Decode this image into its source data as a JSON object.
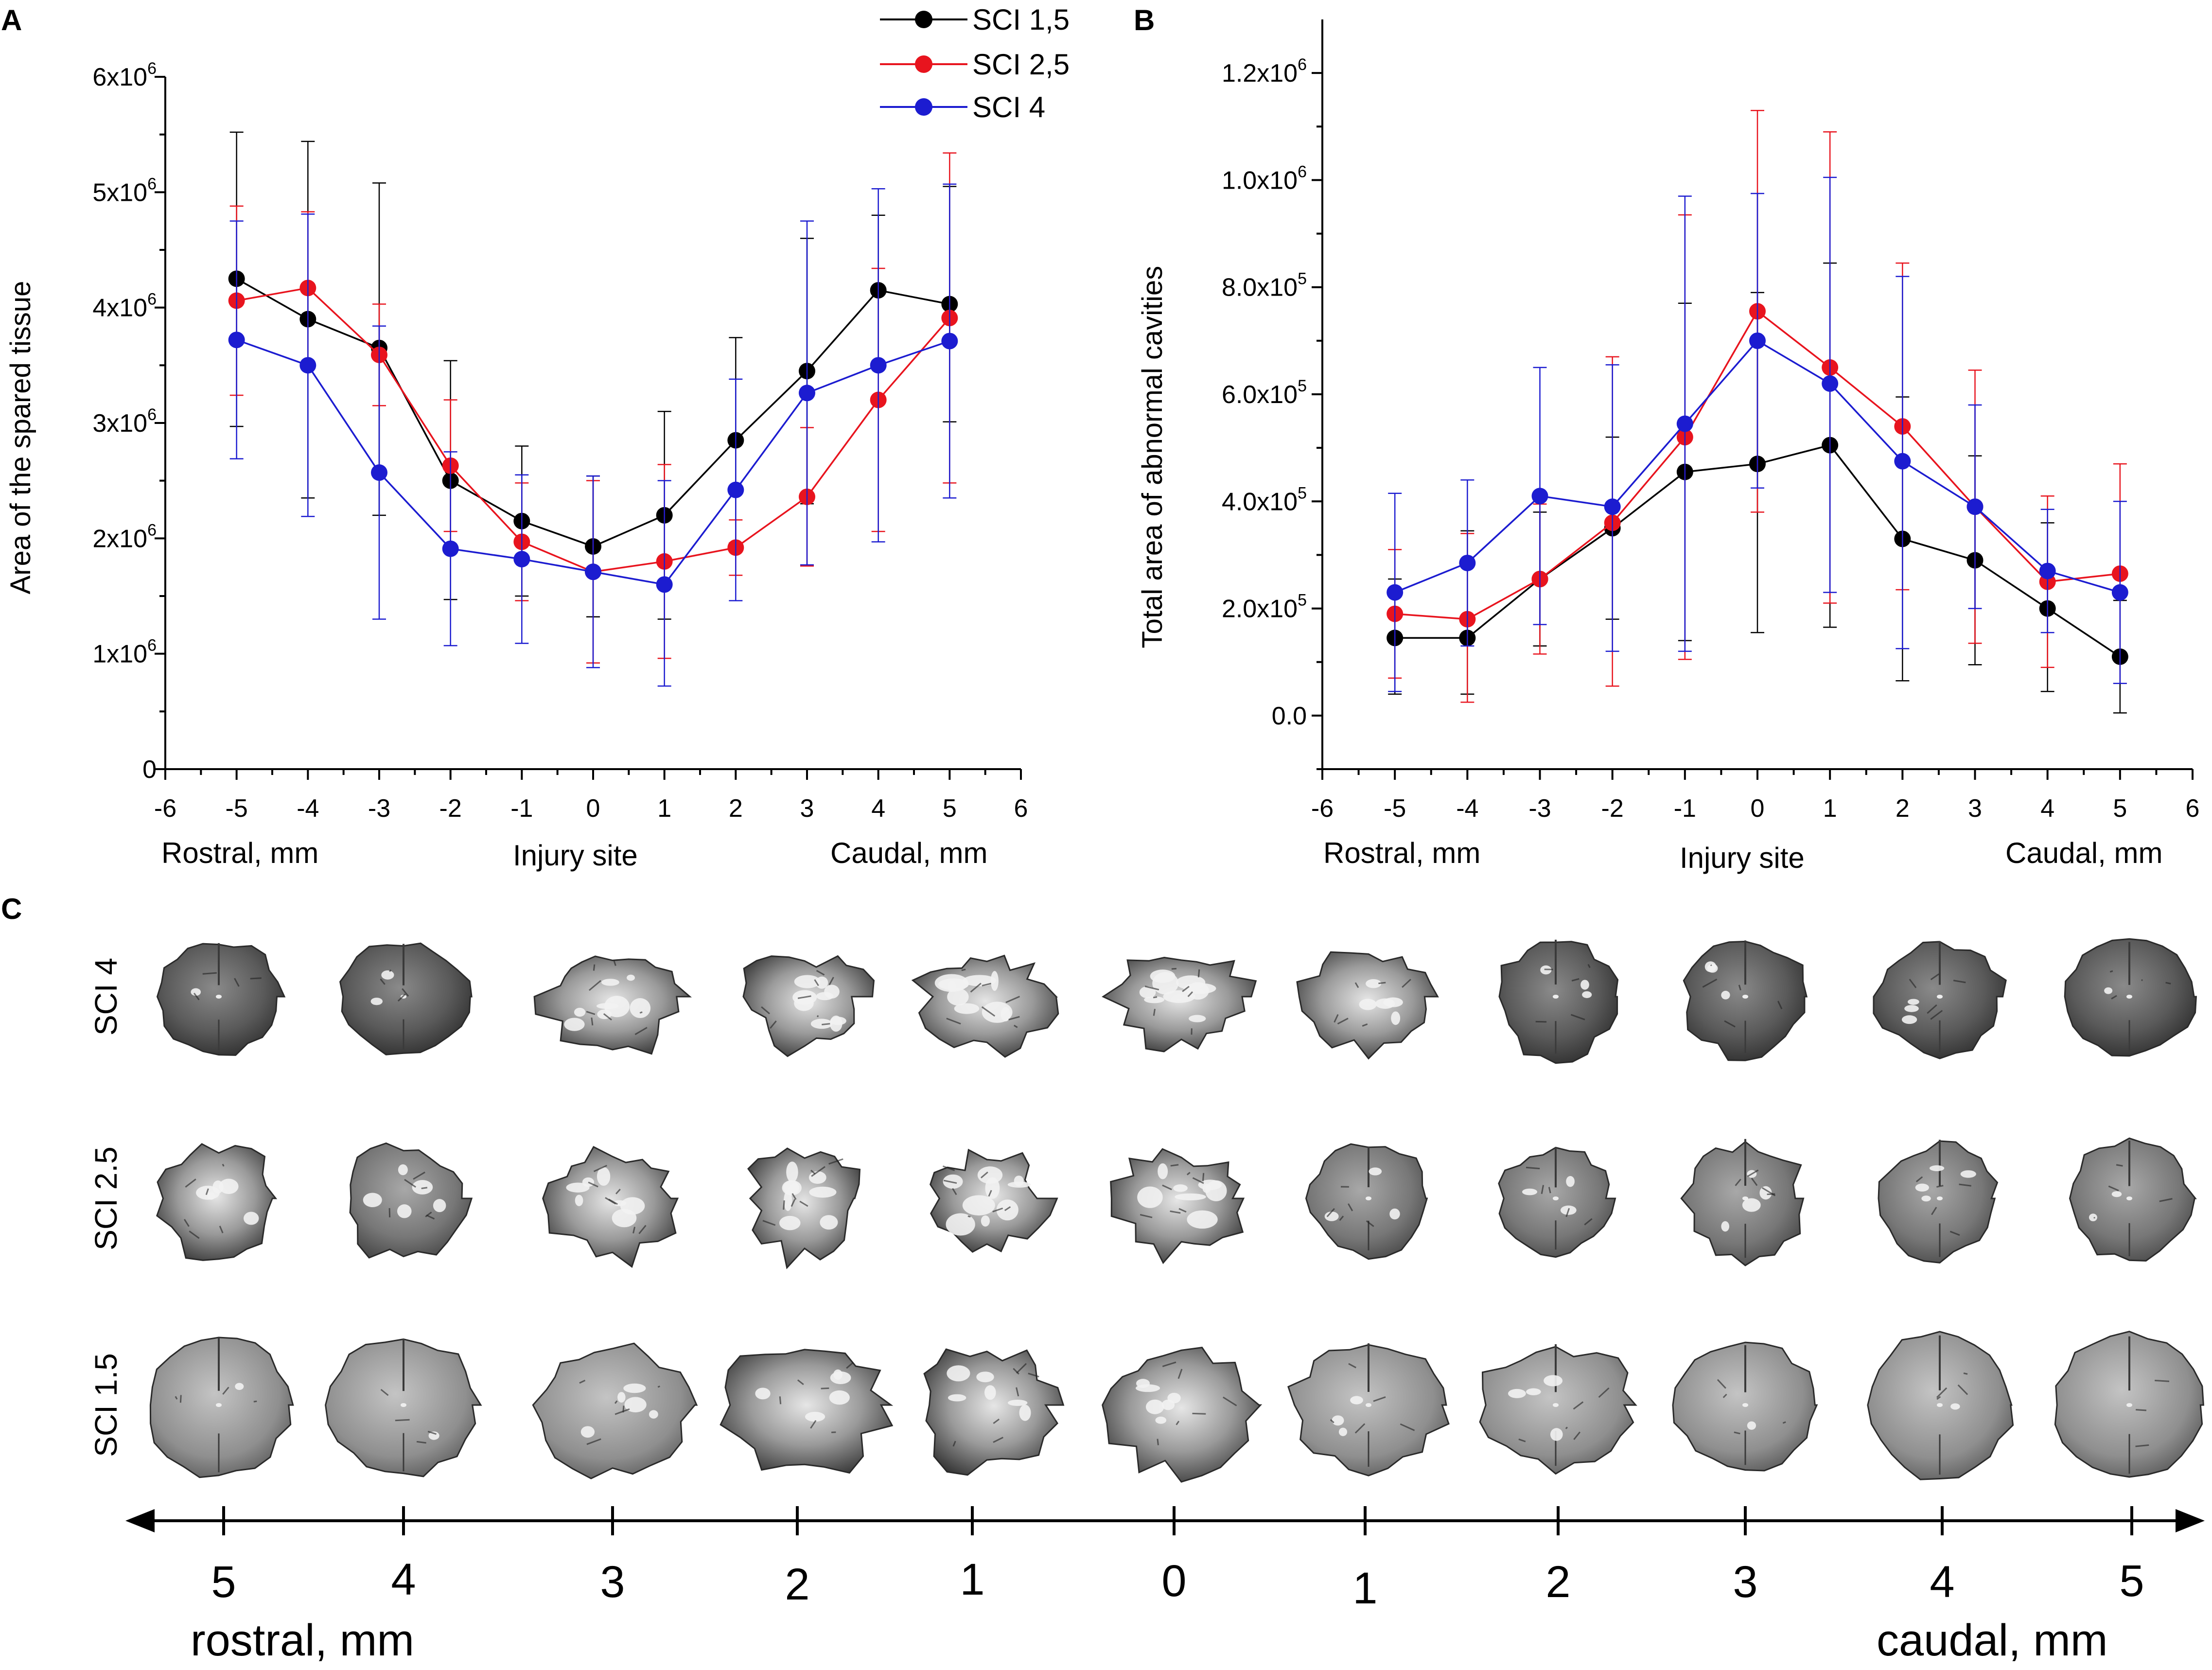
{
  "panels": {
    "a": "A",
    "b": "B",
    "c": "C"
  },
  "colors": {
    "sci15": "#000000",
    "sci25": "#e8141e",
    "sci4": "#1c1cd0",
    "axis": "#000000"
  },
  "legend": {
    "entries": [
      "SCI 1,5",
      "SCI 2,5",
      "SCI 4"
    ]
  },
  "chart_data": [
    {
      "id": "A",
      "type": "line",
      "title": "",
      "ylabel": "Area of the spared tissue",
      "xlabel_left": "Rostral, mm",
      "xlabel_center": "Injury site",
      "xlabel_right": "Caudal, mm",
      "xlim": [
        -6,
        6
      ],
      "ylim": [
        0,
        6000000
      ],
      "xticks": [
        -6,
        -5,
        -4,
        -3,
        -2,
        -1,
        0,
        1,
        2,
        3,
        4,
        5,
        6
      ],
      "xtick_labels": [
        "-6",
        "-5",
        "-4",
        "-3",
        "-2",
        "-1",
        "0",
        "1",
        "2",
        "3",
        "4",
        "5",
        "6"
      ],
      "yticks": [
        0,
        1000000,
        2000000,
        3000000,
        4000000,
        5000000,
        6000000
      ],
      "ytick_labels": [
        {
          "mant": "0",
          "exp": ""
        },
        {
          "mant": "1x10",
          "exp": "6"
        },
        {
          "mant": "2x10",
          "exp": "6"
        },
        {
          "mant": "3x10",
          "exp": "6"
        },
        {
          "mant": "4x10",
          "exp": "6"
        },
        {
          "mant": "5x10",
          "exp": "6"
        },
        {
          "mant": "6x10",
          "exp": "6"
        }
      ],
      "x": [
        -5,
        -4,
        -3,
        -2,
        -1,
        0,
        1,
        2,
        3,
        4,
        5
      ],
      "series": [
        {
          "name": "SCI 1,5",
          "color_key": "sci15",
          "values": [
            4250000,
            3900000,
            3650000,
            2500000,
            2150000,
            1930000,
            2200000,
            2850000,
            3450000,
            4150000,
            4030000
          ],
          "err_up": [
            5520000,
            5440000,
            5080000,
            3540000,
            2800000,
            2540000,
            3100000,
            3740000,
            4600000,
            4800000,
            5050000
          ],
          "err_low": [
            2970000,
            2350000,
            2200000,
            1470000,
            1500000,
            1320000,
            1300000,
            1960000,
            2300000,
            3500000,
            3010000
          ]
        },
        {
          "name": "SCI 2,5",
          "color_key": "sci25",
          "values": [
            4060000,
            4170000,
            3590000,
            2630000,
            1970000,
            1710000,
            1800000,
            1920000,
            2360000,
            3200000,
            3910000
          ],
          "err_up": [
            4880000,
            4830000,
            4030000,
            3200000,
            2480000,
            2500000,
            2640000,
            2160000,
            2960000,
            4340000,
            5340000
          ],
          "err_low": [
            3240000,
            3510000,
            3150000,
            2060000,
            1460000,
            920000,
            960000,
            1680000,
            1760000,
            2060000,
            2480000
          ]
        },
        {
          "name": "SCI 4",
          "color_key": "sci4",
          "values": [
            3720000,
            3500000,
            2570000,
            1910000,
            1820000,
            1710000,
            1600000,
            2420000,
            3260000,
            3500000,
            3710000
          ],
          "err_up": [
            4750000,
            4810000,
            3840000,
            2750000,
            2550000,
            2540000,
            2500000,
            3380000,
            4750000,
            5030000,
            5070000
          ],
          "err_low": [
            2690000,
            2190000,
            1300000,
            1070000,
            1090000,
            880000,
            720000,
            1460000,
            1770000,
            1970000,
            2350000
          ]
        }
      ]
    },
    {
      "id": "B",
      "type": "line",
      "title": "",
      "ylabel": "Total area of abnormal cavities",
      "xlabel_left": "Rostral, mm",
      "xlabel_center": "Injury site",
      "xlabel_right": "Caudal, mm",
      "xlim": [
        -6,
        6
      ],
      "ylim": [
        -100000,
        1300000
      ],
      "xticks": [
        -6,
        -5,
        -4,
        -3,
        -2,
        -1,
        0,
        1,
        2,
        3,
        4,
        5,
        6
      ],
      "xtick_labels": [
        "-6",
        "-5",
        "-4",
        "-3",
        "-2",
        "-1",
        "0",
        "1",
        "2",
        "3",
        "4",
        "5",
        "6"
      ],
      "yticks": [
        0,
        200000,
        400000,
        600000,
        800000,
        1000000,
        1200000
      ],
      "ytick_labels": [
        {
          "mant": "0.0",
          "exp": ""
        },
        {
          "mant": "2.0x10",
          "exp": "5"
        },
        {
          "mant": "4.0x10",
          "exp": "5"
        },
        {
          "mant": "6.0x10",
          "exp": "5"
        },
        {
          "mant": "8.0x10",
          "exp": "5"
        },
        {
          "mant": "1.0x10",
          "exp": "6"
        },
        {
          "mant": "1.2x10",
          "exp": "6"
        }
      ],
      "x": [
        -5,
        -4,
        -3,
        -2,
        -1,
        0,
        1,
        2,
        3,
        4,
        5
      ],
      "series": [
        {
          "name": "SCI 1,5",
          "color_key": "sci15",
          "values": [
            145000,
            145000,
            255000,
            350000,
            455000,
            470000,
            505000,
            330000,
            290000,
            200000,
            110000
          ],
          "err_up": [
            255000,
            345000,
            380000,
            520000,
            770000,
            790000,
            845000,
            595000,
            485000,
            360000,
            215000
          ],
          "err_low": [
            40000,
            40000,
            130000,
            180000,
            140000,
            155000,
            165000,
            65000,
            95000,
            45000,
            5000
          ]
        },
        {
          "name": "SCI 2,5",
          "color_key": "sci25",
          "values": [
            190000,
            180000,
            255000,
            360000,
            520000,
            755000,
            650000,
            540000,
            390000,
            250000,
            265000
          ],
          "err_up": [
            310000,
            340000,
            395000,
            670000,
            935000,
            1130000,
            1090000,
            845000,
            645000,
            410000,
            470000
          ],
          "err_low": [
            70000,
            25000,
            115000,
            55000,
            105000,
            380000,
            210000,
            235000,
            135000,
            90000,
            60000
          ]
        },
        {
          "name": "SCI 4",
          "color_key": "sci4",
          "values": [
            230000,
            285000,
            410000,
            390000,
            545000,
            700000,
            620000,
            475000,
            390000,
            270000,
            230000
          ],
          "err_up": [
            415000,
            440000,
            650000,
            655000,
            970000,
            975000,
            1005000,
            820000,
            580000,
            385000,
            400000
          ],
          "err_low": [
            45000,
            130000,
            170000,
            120000,
            120000,
            425000,
            230000,
            125000,
            200000,
            155000,
            60000
          ]
        }
      ]
    }
  ],
  "panel_c": {
    "row_labels": [
      "SCI 4",
      "SCI 2.5",
      "SCI 1.5"
    ],
    "tick_labels": [
      "5",
      "4",
      "3",
      "2",
      "1",
      "0",
      "1",
      "2",
      "3",
      "4",
      "5"
    ],
    "rostral_label": "rostral,  mm",
    "caudal_label": "caudal,  mm"
  }
}
